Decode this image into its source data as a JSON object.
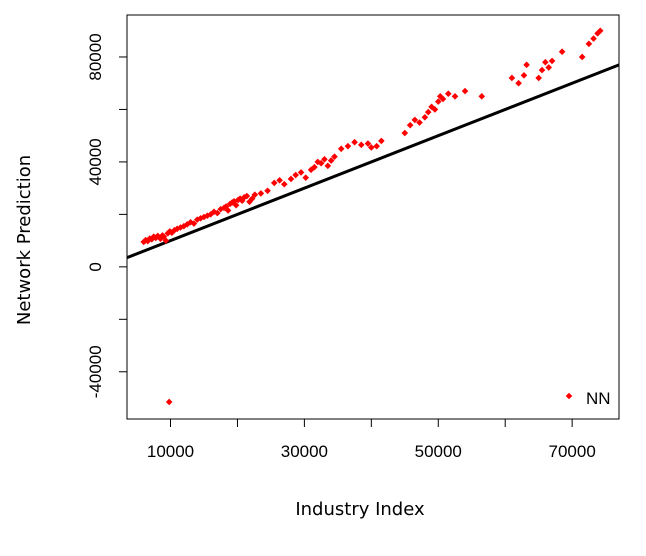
{
  "chart_data": {
    "type": "scatter",
    "title": "",
    "xlabel": "Industry Index",
    "ylabel": "Network Prediction",
    "xlim": [
      3500,
      77000
    ],
    "ylim": [
      -58000,
      96000
    ],
    "xticks": [
      10000,
      20000,
      30000,
      40000,
      50000,
      60000,
      70000
    ],
    "xtick_labels": [
      "10000",
      "",
      "30000",
      "",
      "50000",
      "",
      "70000"
    ],
    "yticks": [
      -40000,
      -20000,
      0,
      20000,
      40000,
      60000,
      80000
    ],
    "ytick_labels": [
      "-40000",
      "",
      "0",
      "",
      "40000",
      "",
      "80000"
    ],
    "grid": false,
    "legend": {
      "position": "bottom-right",
      "entries": [
        {
          "label": "NN",
          "color": "#ff0000",
          "marker": "diamond"
        }
      ]
    },
    "colors": {
      "points": "#ff0000",
      "line": "#000000"
    },
    "reference_line": {
      "x": [
        3500,
        77000
      ],
      "y": [
        3500,
        77000
      ]
    },
    "series": [
      {
        "name": "NN",
        "x": [
          6000,
          6300,
          6600,
          6900,
          7200,
          7500,
          7800,
          8100,
          8500,
          8800,
          9000,
          9300,
          9600,
          9900,
          10200,
          10600,
          11000,
          11500,
          12000,
          12500,
          13000,
          13500,
          14000,
          14500,
          15000,
          15500,
          16000,
          16500,
          17000,
          17500,
          18000,
          18300,
          18600,
          18900,
          19200,
          19500,
          19800,
          20100,
          20400,
          20700,
          21000,
          21400,
          21800,
          22200,
          22600,
          23500,
          24500,
          25500,
          26300,
          27000,
          28000,
          28700,
          29500,
          30200,
          31000,
          31500,
          32000,
          32500,
          33000,
          33500,
          34000,
          34500,
          35500,
          36500,
          37500,
          38500,
          39500,
          40000,
          40800,
          41500,
          45000,
          45800,
          46500,
          47200,
          48000,
          48500,
          49000,
          49500,
          50000,
          50300,
          50700,
          51500,
          52500,
          54000,
          56500,
          61000,
          62000,
          62800,
          63200,
          65000,
          65500,
          66000,
          66500,
          67000,
          68500,
          71500,
          72500,
          73200,
          73800,
          74200,
          9800
        ],
        "y": [
          9500,
          10200,
          9800,
          10800,
          10500,
          11500,
          11000,
          11800,
          10700,
          12000,
          11500,
          10000,
          12800,
          13500,
          13000,
          14000,
          14500,
          15000,
          15500,
          16200,
          17000,
          16500,
          18000,
          18500,
          19000,
          19500,
          20000,
          21000,
          20500,
          22000,
          22500,
          23000,
          21500,
          24000,
          24500,
          25000,
          23500,
          25500,
          26000,
          25200,
          26500,
          27000,
          24800,
          26000,
          27500,
          28000,
          29000,
          32000,
          33000,
          31500,
          33500,
          35000,
          36000,
          34000,
          37000,
          38000,
          40000,
          39500,
          41000,
          38500,
          40500,
          42000,
          45000,
          46000,
          47500,
          46500,
          47000,
          45500,
          46000,
          48000,
          51000,
          54000,
          56000,
          55000,
          57000,
          59000,
          61000,
          60000,
          63000,
          65000,
          64000,
          66000,
          65000,
          67000,
          65000,
          72000,
          70000,
          73000,
          77000,
          72000,
          75000,
          78000,
          76000,
          78500,
          82000,
          80000,
          85000,
          87000,
          89000,
          90000,
          -51500
        ]
      }
    ]
  }
}
